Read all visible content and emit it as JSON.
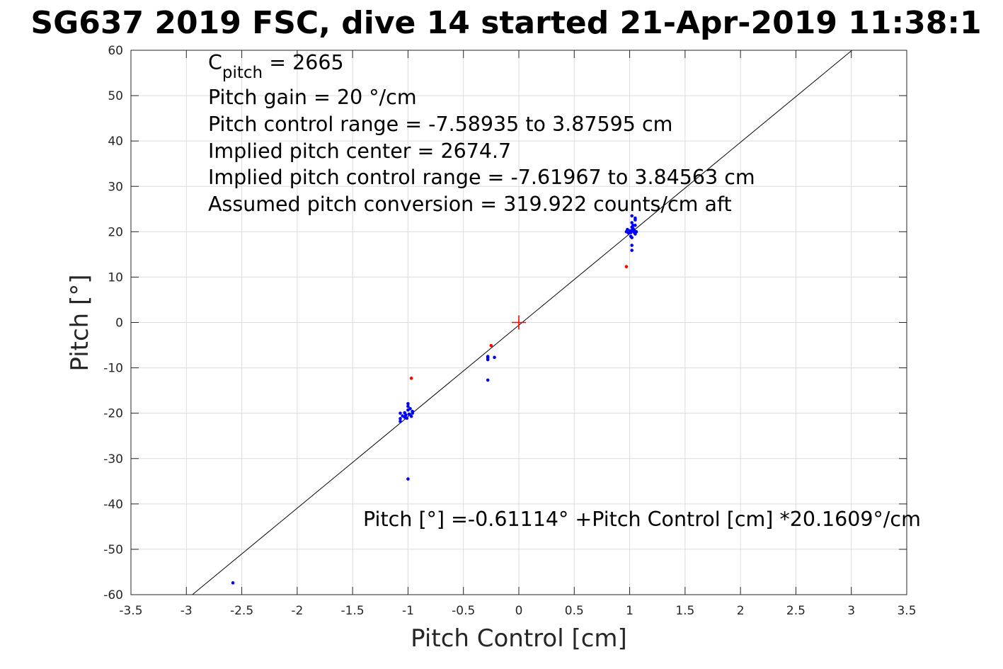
{
  "chart_data": {
    "type": "scatter",
    "title": "SG637 2019 FSC, dive 14 started 21-Apr-2019 11:38:1",
    "xlabel": "Pitch Control [cm]",
    "ylabel": "Pitch [°]",
    "xlim": [
      -3.5,
      3.5
    ],
    "ylim": [
      -60,
      60
    ],
    "xticks": [
      -3.5,
      -3,
      -2.5,
      -2,
      -1.5,
      -1,
      -0.5,
      0,
      0.5,
      1,
      1.5,
      2,
      2.5,
      3,
      3.5
    ],
    "yticks": [
      -60,
      -50,
      -40,
      -30,
      -20,
      -10,
      0,
      10,
      20,
      30,
      40,
      50,
      60
    ],
    "grid": true,
    "annotations": {
      "c_pitch": {
        "base": "C",
        "subscript": "pitch",
        "rest": " = 2665"
      },
      "lines": [
        "Pitch gain = 20 °/cm",
        "Pitch control range = -7.58935 to 3.87595 cm",
        "Implied pitch center = 2674.7",
        "Implied pitch control range = -7.61967 to 3.84563 cm",
        "Assumed pitch conversion = 319.922 counts/cm aft"
      ],
      "fit_equation": "Pitch [°] =-0.61114° +Pitch Control [cm] *20.1609°/cm"
    },
    "fit_line": {
      "intercept": -0.61114,
      "slope": 20.1609,
      "color": "#000000"
    },
    "center_marker": {
      "x": 0,
      "y": 0,
      "color": "#ff0000"
    },
    "series": [
      {
        "color": "#0000ff",
        "points": [
          [
            -2.58,
            -57.4
          ],
          [
            -1.0,
            -34.5
          ],
          [
            -0.28,
            -12.7
          ],
          [
            -0.28,
            -7.5
          ],
          [
            -0.28,
            -8.2
          ],
          [
            -0.28,
            -7.8
          ],
          [
            -0.22,
            -7.7
          ],
          [
            -1.07,
            -20.0
          ],
          [
            -1.07,
            -21.2
          ],
          [
            -1.07,
            -21.8
          ],
          [
            -1.05,
            -20.6
          ],
          [
            -1.03,
            -19.9
          ],
          [
            -1.03,
            -20.9
          ],
          [
            -1.02,
            -20.4
          ],
          [
            -1.01,
            -21.1
          ],
          [
            -1.0,
            -19.3
          ],
          [
            -1.0,
            -17.9
          ],
          [
            -1.0,
            -18.5
          ],
          [
            -0.99,
            -20.2
          ],
          [
            -0.98,
            -19.0
          ],
          [
            -0.97,
            -20.7
          ],
          [
            -0.96,
            -19.6
          ],
          [
            -0.96,
            -20.0
          ],
          [
            0.97,
            20.0
          ],
          [
            0.98,
            20.5
          ],
          [
            0.99,
            19.7
          ],
          [
            1.0,
            20.2
          ],
          [
            1.01,
            19.8
          ],
          [
            1.02,
            20.3
          ],
          [
            1.02,
            21.0
          ],
          [
            1.02,
            22.0
          ],
          [
            1.03,
            21.4
          ],
          [
            1.02,
            23.5
          ],
          [
            1.02,
            18.7
          ],
          [
            1.02,
            17.0
          ],
          [
            1.02,
            15.9
          ],
          [
            1.03,
            20.7
          ],
          [
            1.04,
            20.4
          ],
          [
            1.05,
            21.4
          ],
          [
            1.05,
            22.6
          ],
          [
            1.05,
            23.0
          ],
          [
            1.04,
            19.9
          ],
          [
            1.05,
            19.5
          ],
          [
            1.06,
            20.0
          ],
          [
            1.01,
            19.0
          ]
        ]
      },
      {
        "color": "#ff0000",
        "points": [
          [
            -0.25,
            -5.1
          ],
          [
            -0.97,
            -12.3
          ],
          [
            0.97,
            12.3
          ]
        ]
      }
    ]
  }
}
